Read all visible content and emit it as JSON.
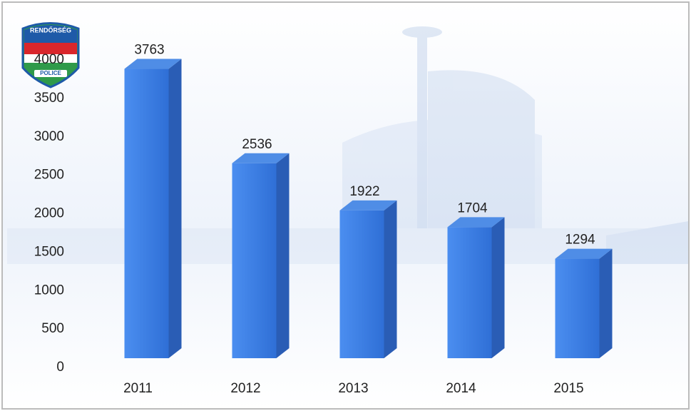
{
  "chart_data": {
    "type": "bar3d",
    "categories": [
      "2011",
      "2012",
      "2013",
      "2014",
      "2015"
    ],
    "values": [
      3763,
      2536,
      1922,
      1704,
      1294
    ],
    "color": "#3b7fe2",
    "ylim": [
      0,
      4000
    ],
    "yticks": [
      0,
      500,
      1000,
      1500,
      2000,
      2500,
      3000,
      3500,
      4000
    ],
    "grid": false,
    "annotations": [
      "RENDŐRSÉG",
      "POLICE"
    ]
  }
}
